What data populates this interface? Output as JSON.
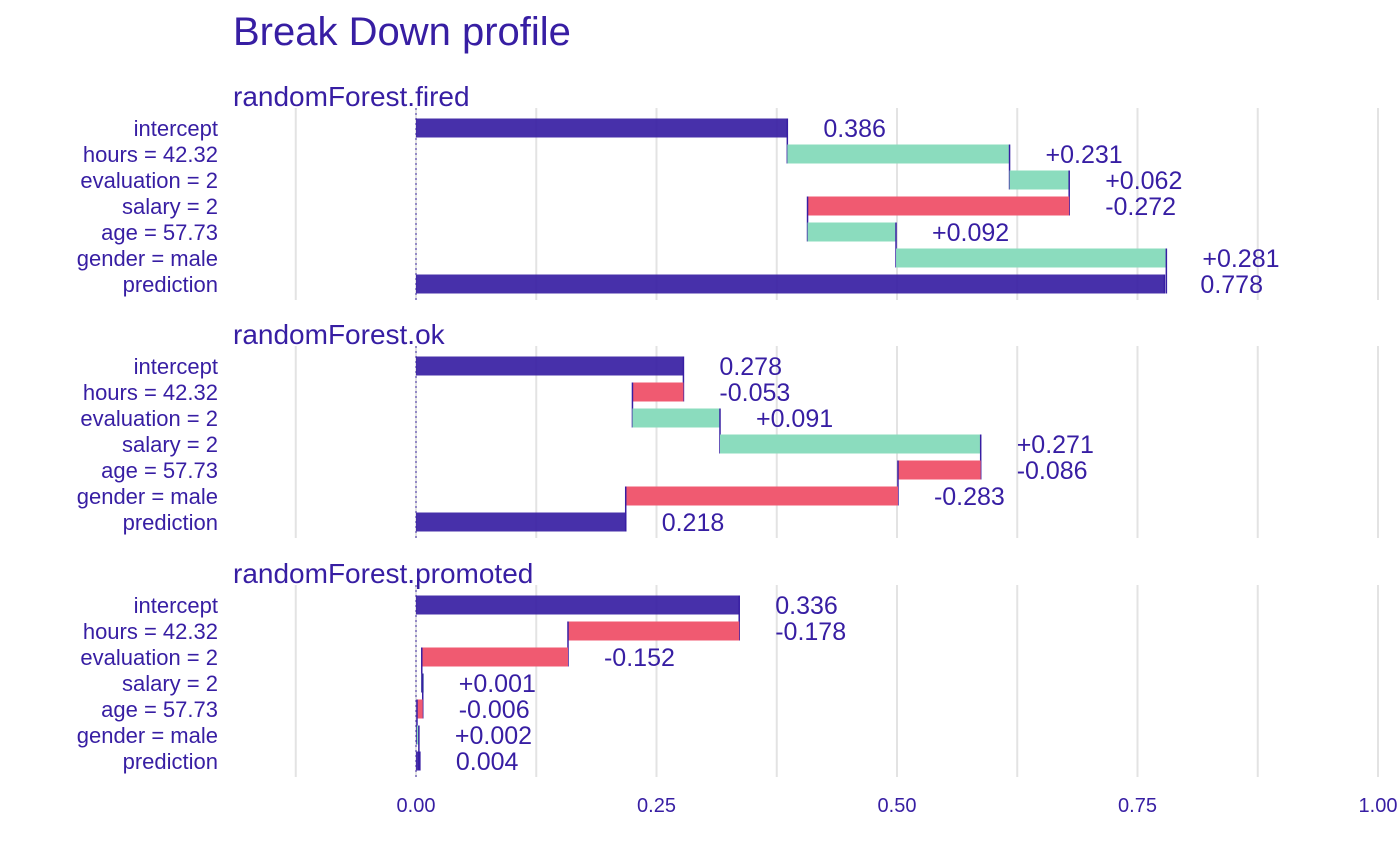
{
  "chart_data": {
    "type": "bar",
    "title": "Break Down profile",
    "variables": [
      "intercept",
      "hours = 42.32",
      "evaluation = 2",
      "salary = 2",
      "age = 57.73",
      "gender = male",
      "prediction"
    ],
    "xlim": [
      -0.25,
      1.0
    ],
    "x_ticks": [
      0.0,
      0.25,
      0.5,
      0.75,
      1.0
    ],
    "x_tick_labels": [
      "0.00",
      "0.25",
      "0.50",
      "0.75",
      "1.00"
    ],
    "grid": true,
    "colors": {
      "intercept_prediction": "#371ea3",
      "positive": "#8bdcbe",
      "negative": "#f05a71",
      "text": "#371ea3"
    },
    "panels": [
      {
        "name": "randomForest.fired",
        "contributions": [
          0.386,
          0.231,
          0.062,
          -0.272,
          0.092,
          0.281,
          0.778
        ],
        "labels": [
          "0.386",
          "+0.231",
          "+0.062",
          "-0.272",
          "+0.092",
          "+0.281",
          "0.778"
        ]
      },
      {
        "name": "randomForest.ok",
        "contributions": [
          0.278,
          -0.053,
          0.091,
          0.271,
          -0.086,
          -0.283,
          0.218
        ],
        "labels": [
          "0.278",
          "-0.053",
          "+0.091",
          "+0.271",
          "-0.086",
          "-0.283",
          "0.218"
        ]
      },
      {
        "name": "randomForest.promoted",
        "contributions": [
          0.336,
          -0.178,
          -0.152,
          0.001,
          -0.006,
          0.002,
          0.004
        ],
        "labels": [
          "0.336",
          "-0.178",
          "-0.152",
          "+0.001",
          "-0.006",
          "+0.002",
          "0.004"
        ]
      }
    ]
  }
}
